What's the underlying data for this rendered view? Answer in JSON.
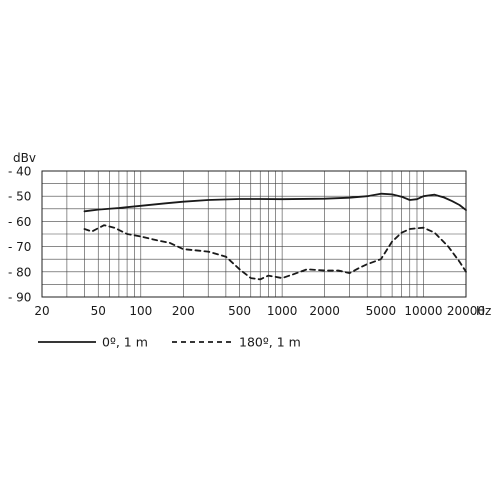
{
  "chart_data": {
    "type": "line",
    "ylabel": "dBv",
    "xunit": "Hz",
    "xscale": "log",
    "xlim": [
      20,
      20000
    ],
    "ylim": [
      -90,
      -40
    ],
    "grid": true,
    "x_ticks": [
      20,
      50,
      100,
      200,
      500,
      1000,
      2000,
      5000,
      10000,
      20000
    ],
    "x_tick_labels": [
      "20",
      "50",
      "100",
      "200",
      "500",
      "1000",
      "2000",
      "5000",
      "10000",
      "20000"
    ],
    "y_ticks": [
      -40,
      -50,
      -60,
      -70,
      -80,
      -90
    ],
    "y_tick_labels": [
      "- 40",
      "- 50",
      "- 60",
      "- 70",
      "- 80",
      "- 90"
    ],
    "legend_position": "bottom",
    "series": [
      {
        "name": "0º, 1 m",
        "style": "solid",
        "color": "#1a1a1a",
        "x": [
          40,
          50,
          70,
          100,
          150,
          200,
          300,
          500,
          700,
          1000,
          2000,
          3000,
          4000,
          5000,
          6000,
          7000,
          8000,
          9000,
          10000,
          12000,
          14000,
          16000,
          18000,
          20000
        ],
        "y": [
          -56,
          -55.3,
          -54.7,
          -53.8,
          -52.8,
          -52.2,
          -51.5,
          -51.1,
          -51.1,
          -51.2,
          -51,
          -50.6,
          -50,
          -49,
          -49.3,
          -50.2,
          -51.5,
          -51.2,
          -50,
          -49.4,
          -50.5,
          -52,
          -53.5,
          -55.5
        ]
      },
      {
        "name": "180º, 1 m",
        "style": "dashed",
        "color": "#1a1a1a",
        "x": [
          40,
          45,
          55,
          65,
          80,
          100,
          130,
          160,
          200,
          300,
          400,
          500,
          600,
          700,
          800,
          1000,
          1200,
          1500,
          2000,
          2500,
          3000,
          3500,
          4000,
          5000,
          6000,
          7000,
          8000,
          10000,
          12000,
          15000,
          18000,
          20000
        ],
        "y": [
          -63,
          -64,
          -61.5,
          -62.5,
          -65,
          -66,
          -67.5,
          -68.5,
          -71,
          -72,
          -74,
          -79,
          -82.5,
          -83,
          -81.5,
          -82.5,
          -81,
          -79,
          -79.5,
          -79.5,
          -80.5,
          -78.5,
          -77,
          -75,
          -68,
          -64.5,
          -63,
          -62.5,
          -64.5,
          -70,
          -76,
          -80
        ]
      }
    ]
  }
}
